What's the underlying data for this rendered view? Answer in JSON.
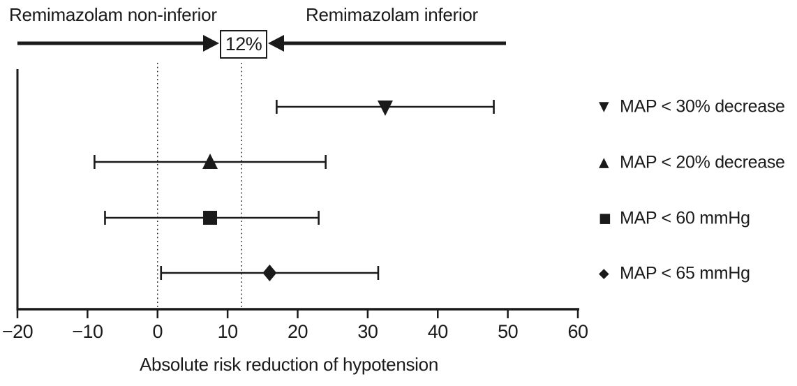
{
  "header": {
    "left_label": "Remimazolam non-inferior",
    "right_label": "Remimazolam inferior",
    "margin_label": "12%"
  },
  "chart_data": {
    "type": "scatter",
    "subtype": "forest-plot-horizontal-error-bars",
    "title": "",
    "xlabel": "Absolute risk reduction of hypotension",
    "ylabel": "",
    "xlim": [
      -20,
      60
    ],
    "xticks": [
      -20,
      -10,
      0,
      10,
      20,
      30,
      40,
      50,
      60
    ],
    "xtick_labels": [
      "−20",
      "−10",
      "0",
      "10",
      "20",
      "30",
      "40",
      "50",
      "60"
    ],
    "reference_lines": [
      0,
      12
    ],
    "noninferiority_margin_pct": 12,
    "grid": false,
    "legend_position": "right",
    "series": [
      {
        "name": "MAP < 30% decrease",
        "marker": "triangle-down",
        "symbol": "▼",
        "point": 32.5,
        "ci": [
          17,
          48
        ]
      },
      {
        "name": "MAP < 20% decrease",
        "marker": "triangle-up",
        "symbol": "▲",
        "point": 7.5,
        "ci": [
          -9,
          24
        ]
      },
      {
        "name": "MAP < 60 mmHg",
        "marker": "square",
        "symbol": "■",
        "point": 7.5,
        "ci": [
          -7.5,
          23
        ]
      },
      {
        "name": "MAP < 65 mmHg",
        "marker": "diamond",
        "symbol": "◆",
        "point": 16,
        "ci": [
          0.5,
          31.5
        ]
      }
    ]
  },
  "colors": {
    "ink": "#1a1a1a",
    "background": "#ffffff"
  }
}
